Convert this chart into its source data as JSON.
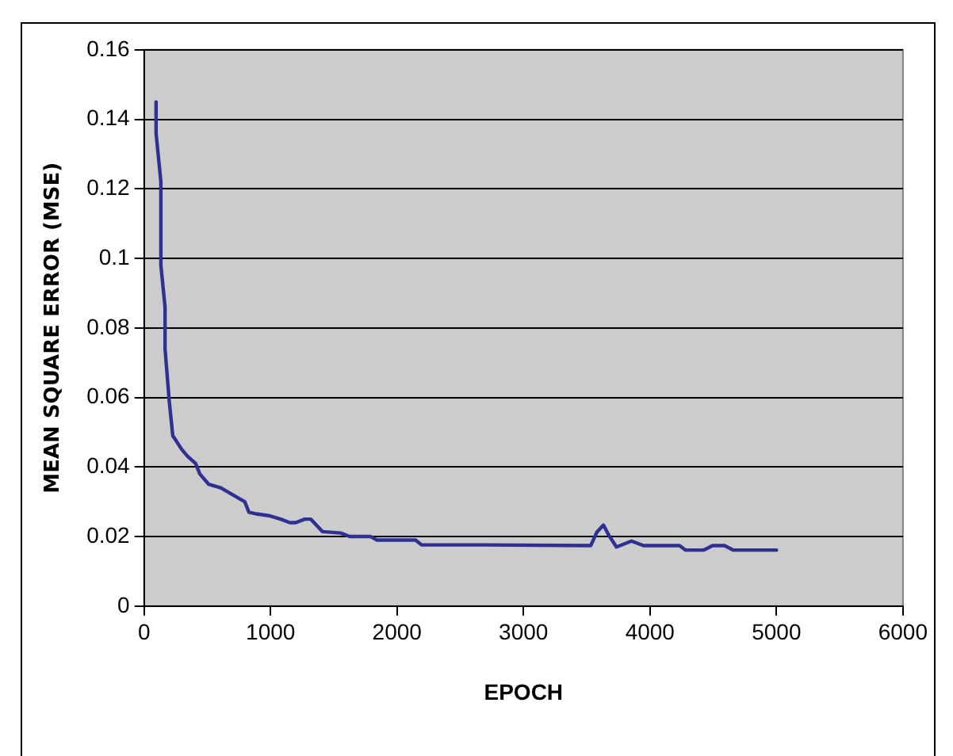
{
  "chart_data": {
    "type": "line",
    "xlabel": "EPOCH",
    "ylabel": "MEAN SQUARE ERROR (MSE)",
    "xlim": [
      0,
      6000
    ],
    "xticks": [
      0,
      1000,
      2000,
      3000,
      4000,
      5000,
      6000
    ],
    "ylim": [
      0,
      0.16
    ],
    "yticks": [
      0,
      0.02,
      0.04,
      0.06,
      0.08,
      0.1,
      0.12,
      0.14,
      0.16
    ],
    "grid": "y",
    "legend": false,
    "marker": "none",
    "line_style": "solid",
    "series": [
      {
        "color": "#2e3192",
        "x": [
          95,
          95,
          133,
          133,
          166,
          166,
          199,
          227,
          299,
          346,
          408,
          441,
          512,
          607,
          701,
          796,
          829,
          891,
          986,
          1080,
          1152,
          1200,
          1270,
          1318,
          1412,
          1555,
          1626,
          1791,
          1839,
          2147,
          2194,
          2692,
          3532,
          3579,
          3632,
          3674,
          3735,
          3854,
          3949,
          4234,
          4282,
          4424,
          4495,
          4589,
          4660,
          5000
        ],
        "values": [
          0.145,
          0.136,
          0.122,
          0.098,
          0.086,
          0.074,
          0.059,
          0.049,
          0.045,
          0.043,
          0.041,
          0.038,
          0.035,
          0.034,
          0.032,
          0.03,
          0.027,
          0.0265,
          0.026,
          0.025,
          0.024,
          0.024,
          0.025,
          0.025,
          0.0214,
          0.021,
          0.02,
          0.02,
          0.019,
          0.019,
          0.0176,
          0.0176,
          0.0174,
          0.0212,
          0.0233,
          0.0204,
          0.017,
          0.0187,
          0.0174,
          0.0174,
          0.0161,
          0.0161,
          0.0174,
          0.0174,
          0.0161,
          0.0161
        ]
      }
    ]
  }
}
